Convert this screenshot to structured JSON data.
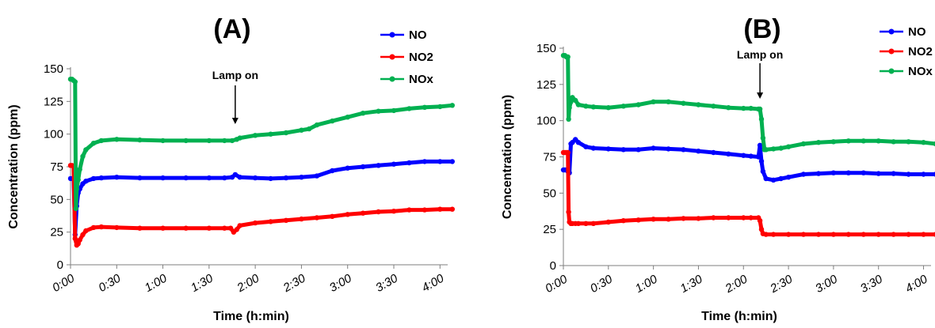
{
  "chart_data": [
    {
      "type": "line",
      "panel_label": "(A)",
      "xlabel": "Time (h:min)",
      "ylabel": "Concentration (ppm)",
      "x_unit": "minutes",
      "xlim": [
        0,
        245
      ],
      "ylim": [
        0,
        150
      ],
      "xticks": [
        0,
        30,
        60,
        90,
        120,
        150,
        180,
        210,
        240
      ],
      "xtick_labels": [
        "0:00",
        "0:30",
        "1:00",
        "1:30",
        "2:00",
        "2:30",
        "3:00",
        "3:30",
        "4:00"
      ],
      "yticks": [
        0,
        25,
        50,
        75,
        100,
        125,
        150
      ],
      "ytick_labels": [
        "0",
        "25",
        "50",
        "75",
        "100",
        "125",
        "150"
      ],
      "legend_position": "top-right",
      "annotation": {
        "text": "Lamp on",
        "x": 107
      },
      "series": [
        {
          "name": "NO",
          "color": "#0000ff",
          "x": [
            0,
            1,
            2,
            3,
            4,
            5,
            6,
            8,
            10,
            15,
            20,
            30,
            45,
            60,
            75,
            90,
            100,
            105,
            107,
            110,
            120,
            130,
            140,
            150,
            160,
            170,
            180,
            190,
            200,
            210,
            220,
            230,
            240,
            248
          ],
          "y": [
            66,
            66,
            66,
            23,
            45,
            55,
            58,
            62,
            64,
            66,
            66.5,
            67,
            66.5,
            66.5,
            66.5,
            66.5,
            66.5,
            67,
            69,
            67,
            66.5,
            66,
            66.5,
            67,
            68,
            72,
            74,
            75,
            76,
            77,
            78,
            79,
            79,
            79
          ]
        },
        {
          "name": "NO2",
          "color": "#ff0000",
          "x": [
            0,
            1,
            2,
            3,
            4,
            5,
            6,
            8,
            10,
            15,
            20,
            30,
            45,
            60,
            75,
            90,
            100,
            104,
            106,
            108,
            110,
            120,
            130,
            140,
            150,
            160,
            170,
            180,
            190,
            200,
            210,
            220,
            230,
            240,
            248
          ],
          "y": [
            76,
            76,
            75,
            20,
            15,
            16,
            19,
            23,
            26,
            28.5,
            29,
            28.5,
            28,
            28,
            28,
            28,
            28,
            28,
            25,
            27,
            30,
            32,
            33,
            34,
            35,
            36,
            37,
            38.5,
            39.5,
            40.5,
            41,
            42,
            42,
            42.5,
            42.5
          ]
        },
        {
          "name": "NOx",
          "color": "#00b050",
          "x": [
            0,
            1,
            2,
            3,
            3.5,
            4,
            5,
            6,
            8,
            10,
            15,
            20,
            30,
            45,
            60,
            75,
            90,
            100,
            105,
            108,
            110,
            120,
            130,
            140,
            150,
            155,
            160,
            170,
            180,
            190,
            200,
            210,
            220,
            230,
            240,
            248
          ],
          "y": [
            142,
            142,
            141,
            140,
            43,
            58,
            65,
            73,
            83,
            88,
            93,
            95,
            96,
            95.5,
            95,
            95,
            95,
            95,
            95,
            96,
            97,
            99,
            100,
            101,
            103,
            104,
            107,
            110,
            113,
            116,
            117.5,
            118,
            119.5,
            120.5,
            121,
            122
          ]
        }
      ]
    },
    {
      "type": "line",
      "panel_label": "(B)",
      "xlabel": "Time (h:min)",
      "ylabel": "Concentration (ppm)",
      "x_unit": "minutes",
      "xlim": [
        0,
        245
      ],
      "ylim": [
        0,
        150
      ],
      "xticks": [
        0,
        30,
        60,
        90,
        120,
        150,
        180,
        210,
        240
      ],
      "xtick_labels": [
        "0:00",
        "0:30",
        "1:00",
        "1:30",
        "2:00",
        "2:30",
        "3:00",
        "3:30",
        "4:00"
      ],
      "yticks": [
        0,
        25,
        50,
        75,
        100,
        125,
        150
      ],
      "ytick_labels": [
        "0",
        "25",
        "50",
        "75",
        "100",
        "125",
        "150"
      ],
      "legend_position": "top-right",
      "annotation": {
        "text": "Lamp on",
        "x": 131
      },
      "series": [
        {
          "name": "NO",
          "color": "#0000ff",
          "x": [
            0,
            1,
            2,
            3,
            4,
            5,
            6,
            8,
            10,
            15,
            20,
            30,
            40,
            50,
            60,
            70,
            80,
            90,
            100,
            110,
            120,
            125,
            130,
            131,
            132,
            133,
            135,
            140,
            145,
            150,
            160,
            170,
            180,
            190,
            200,
            210,
            220,
            230,
            240,
            248
          ],
          "y": [
            66,
            66,
            66,
            65,
            64,
            84,
            85,
            87,
            85,
            82,
            81,
            80.5,
            80,
            80,
            81,
            80.5,
            80,
            79,
            78,
            77,
            76,
            75.5,
            75,
            83,
            72,
            65,
            60,
            59,
            60,
            61,
            63,
            63.5,
            64,
            64,
            64,
            63.5,
            63.5,
            63,
            63,
            63
          ]
        },
        {
          "name": "NO2",
          "color": "#ff0000",
          "x": [
            0,
            1,
            2,
            3,
            3.5,
            4,
            5,
            6,
            8,
            10,
            15,
            20,
            30,
            40,
            50,
            60,
            70,
            80,
            90,
            100,
            110,
            120,
            125,
            130,
            131,
            132,
            133,
            135,
            140,
            150,
            160,
            170,
            180,
            190,
            200,
            210,
            220,
            230,
            240,
            248
          ],
          "y": [
            78,
            78,
            78,
            78,
            37,
            30,
            29,
            29,
            29,
            29,
            29,
            29,
            30,
            31,
            31.5,
            32,
            32,
            32.5,
            32.5,
            33,
            33,
            33,
            33,
            33,
            31,
            25,
            22,
            21.5,
            21.5,
            21.5,
            21.5,
            21.5,
            21.5,
            21.5,
            21.5,
            21.5,
            21.5,
            21.5,
            21.5,
            21.5
          ]
        },
        {
          "name": "NOx",
          "color": "#00b050",
          "x": [
            0,
            1,
            2,
            3,
            3.5,
            4,
            5,
            6,
            8,
            10,
            15,
            20,
            30,
            40,
            50,
            60,
            70,
            80,
            90,
            100,
            110,
            120,
            125,
            130,
            131,
            132,
            133,
            134,
            135,
            140,
            145,
            150,
            160,
            170,
            180,
            190,
            200,
            210,
            220,
            230,
            240,
            248
          ],
          "y": [
            145,
            145,
            144,
            144,
            101,
            109,
            113,
            116,
            114,
            111,
            110,
            109.5,
            109,
            110,
            111,
            113,
            113,
            112,
            111,
            110,
            109,
            108.5,
            108.5,
            108,
            108,
            101,
            88,
            80,
            80,
            80.5,
            81,
            82,
            84,
            85,
            85.5,
            86,
            86,
            86,
            85.5,
            85.5,
            85,
            84
          ]
        }
      ]
    }
  ]
}
